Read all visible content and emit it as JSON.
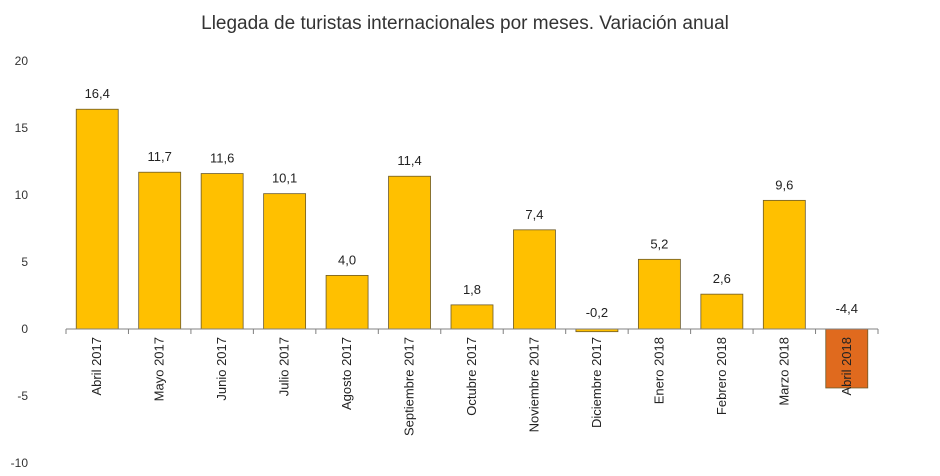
{
  "chart_data": {
    "type": "bar",
    "title": "Llegada de turistas internacionales por meses. Variación anual",
    "xlabel": "",
    "ylabel": "",
    "ylim": [
      -10,
      20
    ],
    "yticks": [
      -10,
      -5,
      0,
      5,
      10,
      15,
      20
    ],
    "ytick_labels": [
      "-10",
      "-5",
      "0",
      "5",
      "10",
      "15",
      "20"
    ],
    "grid": false,
    "legend": "none",
    "categories": [
      "Abril 2017",
      "Mayo 2017",
      "Junio 2017",
      "Julio 2017",
      "Agosto 2017",
      "Septiembre 2017",
      "Octubre 2017",
      "Noviembre 2017",
      "Diciembre 2017",
      "Enero 2018",
      "Febrero 2018",
      "Marzo 2018",
      "Abril 2018"
    ],
    "values": [
      16.4,
      11.7,
      11.6,
      10.1,
      4.0,
      11.4,
      1.8,
      7.4,
      -0.2,
      5.2,
      2.6,
      9.6,
      -4.4
    ],
    "value_labels": [
      "16,4",
      "11,7",
      "11,6",
      "10,1",
      "4,0",
      "11,4",
      "1,8",
      "7,4",
      "-0,2",
      "5,2",
      "2,6",
      "9,6",
      "-4,4"
    ],
    "colors": {
      "bar": "#FFC000",
      "highlight_bar": "#E06A1E",
      "bar_stroke": "#6b5a2a",
      "axis": "#808080"
    },
    "highlight_index": 12
  }
}
